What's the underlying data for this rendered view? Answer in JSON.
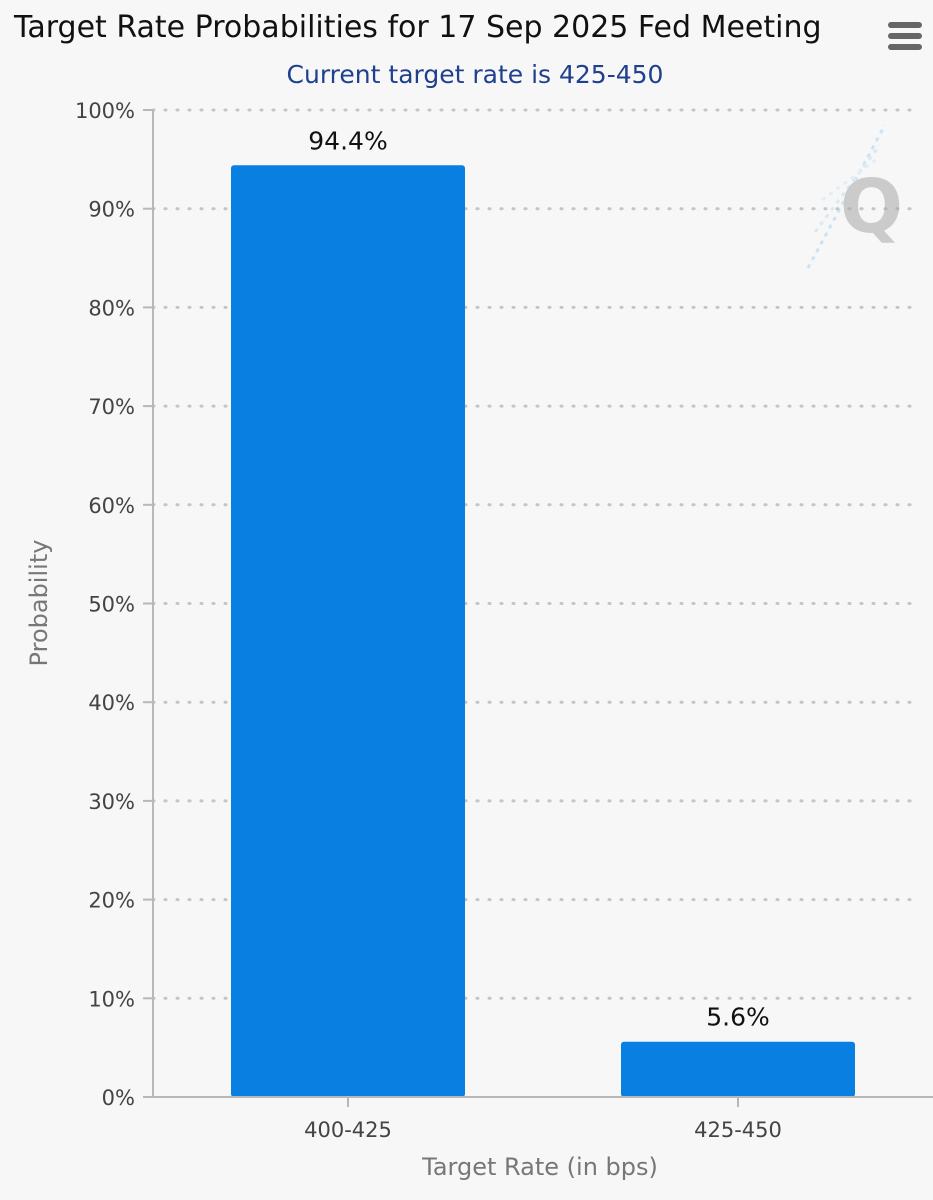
{
  "chart_data": {
    "type": "bar",
    "title": "Target Rate Probabilities for 17 Sep 2025 Fed Meeting",
    "subtitle": "Current target rate is 425-450",
    "categories": [
      "400-425",
      "425-450"
    ],
    "values": [
      94.4,
      5.6
    ],
    "data_labels": [
      "94.4%",
      "5.6%"
    ],
    "xlabel": "Target Rate (in bps)",
    "ylabel": "Probability",
    "ylim": [
      0,
      100
    ],
    "y_ticks": [
      0,
      10,
      20,
      30,
      40,
      50,
      60,
      70,
      80,
      90,
      100
    ],
    "y_tick_labels": [
      "0%",
      "10%",
      "20%",
      "30%",
      "40%",
      "50%",
      "60%",
      "70%",
      "80%",
      "90%",
      "100%"
    ],
    "grid": true,
    "legend": "none",
    "bar_color": "#0a7fe2"
  },
  "menu": {
    "icon": "hamburger-menu-icon"
  },
  "watermark": {
    "icon": "q-logo-icon"
  }
}
